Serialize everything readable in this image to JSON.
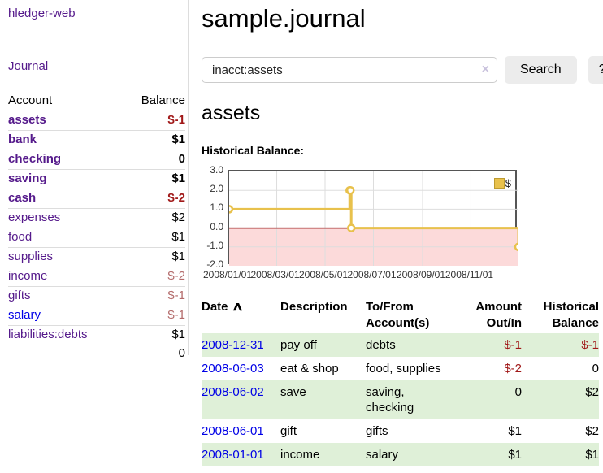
{
  "app": {
    "title": "hledger-web",
    "nav_journal": "Journal"
  },
  "colors": {
    "link_purple": "#551a8b",
    "link_blue": "#0000e6",
    "negative_red": "#a01818",
    "muted_negative": "#b36a6a",
    "row_stripe_green": "#dff0d8",
    "chart_line_gold": "#e8c14c",
    "chart_negative_fill": "#fcdada",
    "chart_zero_line": "#8b0000"
  },
  "sidebar": {
    "col_account": "Account",
    "col_balance": "Balance",
    "accounts": [
      {
        "name": "assets",
        "level": 1,
        "bold": true,
        "balance": "$-1",
        "balance_style": "neg",
        "link_style": "purple"
      },
      {
        "name": "bank",
        "level": 2,
        "bold": true,
        "balance": "$1",
        "balance_style": "norm",
        "link_style": "purple"
      },
      {
        "name": "checking",
        "level": 3,
        "bold": true,
        "balance": "0",
        "balance_style": "norm",
        "link_style": "purple"
      },
      {
        "name": "saving",
        "level": 3,
        "bold": true,
        "balance": "$1",
        "balance_style": "norm",
        "link_style": "purple"
      },
      {
        "name": "cash",
        "level": 2,
        "bold": true,
        "balance": "$-2",
        "balance_style": "neg",
        "link_style": "purple"
      },
      {
        "name": "expenses",
        "level": 1,
        "bold": false,
        "balance": "$2",
        "balance_style": "norm",
        "link_style": "purple"
      },
      {
        "name": "food",
        "level": 2,
        "bold": false,
        "balance": "$1",
        "balance_style": "norm",
        "link_style": "purple"
      },
      {
        "name": "supplies",
        "level": 2,
        "bold": false,
        "balance": "$1",
        "balance_style": "norm",
        "link_style": "purple"
      },
      {
        "name": "income",
        "level": 1,
        "bold": false,
        "balance": "$-2",
        "balance_style": "mneg",
        "link_style": "purple"
      },
      {
        "name": "gifts",
        "level": 2,
        "bold": false,
        "balance": "$-1",
        "balance_style": "mneg",
        "link_style": "purple"
      },
      {
        "name": "salary",
        "level": 2,
        "bold": false,
        "balance": "$-1",
        "balance_style": "mneg",
        "link_style": "blue"
      },
      {
        "name": "liabilities:debts",
        "level": 1,
        "bold": false,
        "balance": "$1",
        "balance_style": "norm",
        "link_style": "purple"
      }
    ],
    "total": "0"
  },
  "header": {
    "title": "sample.journal"
  },
  "search": {
    "value": "inacct:assets",
    "placeholder": "",
    "clear_icon": "×",
    "button_label": "Search",
    "help_label": "?"
  },
  "register": {
    "heading": "assets",
    "chart_label": "Historical Balance:",
    "table": {
      "col_date": "Date",
      "sort_icon": "∧",
      "col_description": "Description",
      "col_accounts": "To/From Account(s)",
      "col_amount": "Amount Out/In",
      "col_balance": "Historical Balance"
    },
    "rows": [
      {
        "date": "2008-12-31",
        "description": "pay off",
        "accounts": "debts",
        "amount": "$-1",
        "amount_negative": true,
        "balance": "$-1",
        "balance_negative": true
      },
      {
        "date": "2008-06-03",
        "description": "eat & shop",
        "accounts": "food, supplies",
        "amount": "$-2",
        "amount_negative": true,
        "balance": "0",
        "balance_negative": false
      },
      {
        "date": "2008-06-02",
        "description": "save",
        "accounts": "saving,\nchecking",
        "amount": "0",
        "amount_negative": false,
        "balance": "$2",
        "balance_negative": false
      },
      {
        "date": "2008-06-01",
        "description": "gift",
        "accounts": "gifts",
        "amount": "$1",
        "amount_negative": false,
        "balance": "$2",
        "balance_negative": false
      },
      {
        "date": "2008-01-01",
        "description": "income",
        "accounts": "salary",
        "amount": "$1",
        "amount_negative": false,
        "balance": "$1",
        "balance_negative": false
      }
    ]
  },
  "chart_data": {
    "type": "line",
    "step": true,
    "title": "Historical Balance",
    "legend": "$",
    "series": [
      {
        "name": "$",
        "x": [
          "2008-01-01",
          "2008-06-01",
          "2008-06-02",
          "2008-06-03",
          "2008-12-31"
        ],
        "y": [
          1,
          2,
          2,
          0,
          -1
        ]
      }
    ],
    "x_start": "2008-01-01",
    "x_end": "2008-12-31",
    "ylim": [
      -2,
      3
    ],
    "ytick_labels": [
      "3.0",
      "2.0",
      "1.0",
      "0.0",
      "-1.0",
      "-2.0"
    ],
    "yticks": [
      3,
      2,
      1,
      0,
      -1,
      -2
    ],
    "xtick_labels": [
      "2008/01/01",
      "2008/03/01",
      "2008/05/01",
      "2008/07/01",
      "2008/09/01",
      "2008/11/01"
    ],
    "grid": true,
    "legend_position": "top-right",
    "colors": {
      "line": "#e8c14c",
      "negative_fill": "#fcdada",
      "zero_line": "#8b0000",
      "grid": "#ddd"
    }
  }
}
